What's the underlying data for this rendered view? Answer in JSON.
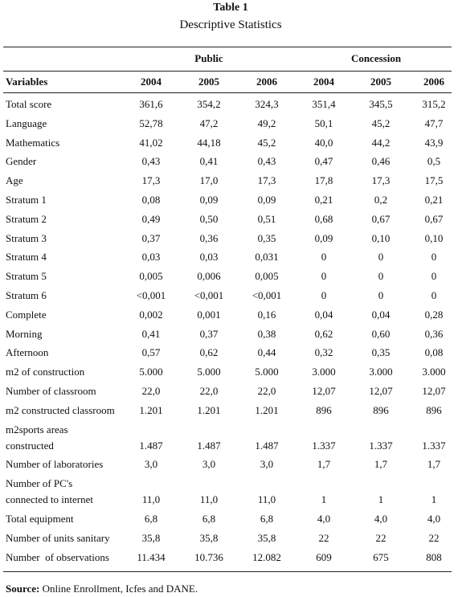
{
  "header": {
    "title": "Table 1",
    "subtitle": "Descriptive Statistics"
  },
  "table": {
    "groups": [
      "Public",
      "Concession"
    ],
    "columns": [
      "Variables",
      "2004",
      "2005",
      "2006",
      "2004",
      "2005",
      "2006"
    ],
    "rows": [
      {
        "label": [
          "Total score"
        ],
        "values": [
          "361,6",
          "354,2",
          "324,3",
          "351,4",
          "345,5",
          "315,2"
        ]
      },
      {
        "label": [
          "Language"
        ],
        "values": [
          "52,78",
          "47,2",
          "49,2",
          "50,1",
          "45,2",
          "47,7"
        ]
      },
      {
        "label": [
          "Mathematics"
        ],
        "values": [
          "41,02",
          "44,18",
          "45,2",
          "40,0",
          "44,2",
          "43,9"
        ]
      },
      {
        "label": [
          "Gender"
        ],
        "values": [
          "0,43",
          "0,41",
          "0,43",
          "0,47",
          "0,46",
          "0,5"
        ]
      },
      {
        "label": [
          "Age"
        ],
        "values": [
          "17,3",
          "17,0",
          "17,3",
          "17,8",
          "17,3",
          "17,5"
        ]
      },
      {
        "label": [
          "Stratum 1"
        ],
        "values": [
          "0,08",
          "0,09",
          "0,09",
          "0,21",
          "0,2",
          "0,21"
        ]
      },
      {
        "label": [
          "Stratum 2"
        ],
        "values": [
          "0,49",
          "0,50",
          "0,51",
          "0,68",
          "0,67",
          "0,67"
        ]
      },
      {
        "label": [
          "Stratum 3"
        ],
        "values": [
          "0,37",
          "0,36",
          "0,35",
          "0,09",
          "0,10",
          "0,10"
        ]
      },
      {
        "label": [
          "Stratum 4"
        ],
        "values": [
          "0,03",
          "0,03",
          "0,031",
          "0",
          "0",
          "0"
        ]
      },
      {
        "label": [
          "Stratum 5"
        ],
        "values": [
          "0,005",
          "0,006",
          "0,005",
          "0",
          "0",
          "0"
        ]
      },
      {
        "label": [
          "Stratum 6"
        ],
        "values": [
          "<0,001",
          "<0,001",
          "<0,001",
          "0",
          "0",
          "0"
        ]
      },
      {
        "label": [
          "Complete"
        ],
        "values": [
          "0,002",
          "0,001",
          "0,16",
          "0,04",
          "0,04",
          "0,28"
        ]
      },
      {
        "label": [
          "Morning"
        ],
        "values": [
          "0,41",
          "0,37",
          "0,38",
          "0,62",
          "0,60",
          "0,36"
        ]
      },
      {
        "label": [
          "Afternoon"
        ],
        "values": [
          "0,57",
          "0,62",
          "0,44",
          "0,32",
          "0,35",
          "0,08"
        ]
      },
      {
        "label": [
          "m2 of construction"
        ],
        "values": [
          "5.000",
          "5.000",
          "5.000",
          "3.000",
          "3.000",
          "3.000"
        ]
      },
      {
        "label": [
          "Number of classroom"
        ],
        "values": [
          "22,0",
          "22,0",
          "22,0",
          "12,07",
          "12,07",
          "12,07"
        ]
      },
      {
        "label": [
          "m2 constructed classroom"
        ],
        "values": [
          "1.201",
          "1.201",
          "1.201",
          "896",
          "896",
          "896"
        ]
      },
      {
        "label": [
          "m2sports areas",
          "constructed"
        ],
        "values": [
          "1.487",
          "1.487",
          "1.487",
          "1.337",
          "1.337",
          "1.337"
        ]
      },
      {
        "label": [
          "Number of laboratories"
        ],
        "values": [
          "3,0",
          "3,0",
          "3,0",
          "1,7",
          "1,7",
          "1,7"
        ]
      },
      {
        "label": [
          "Number of PC's",
          "connected to internet"
        ],
        "values": [
          "11,0",
          "11,0",
          "11,0",
          "1",
          "1",
          "1"
        ]
      },
      {
        "label": [
          "Total equipment"
        ],
        "values": [
          "6,8",
          "6,8",
          "6,8",
          "4,0",
          "4,0",
          "4,0"
        ]
      },
      {
        "label": [
          "Number of units sanitary"
        ],
        "values": [
          "35,8",
          "35,8",
          "35,8",
          "22",
          "22",
          "22"
        ]
      },
      {
        "label": [
          "Number  of observations"
        ],
        "values": [
          "11.434",
          "10.736",
          "12.082",
          "609",
          "675",
          "808"
        ]
      }
    ]
  },
  "source": {
    "label": "Source:",
    "text": " Online Enrollment, Icfes and DANE."
  }
}
